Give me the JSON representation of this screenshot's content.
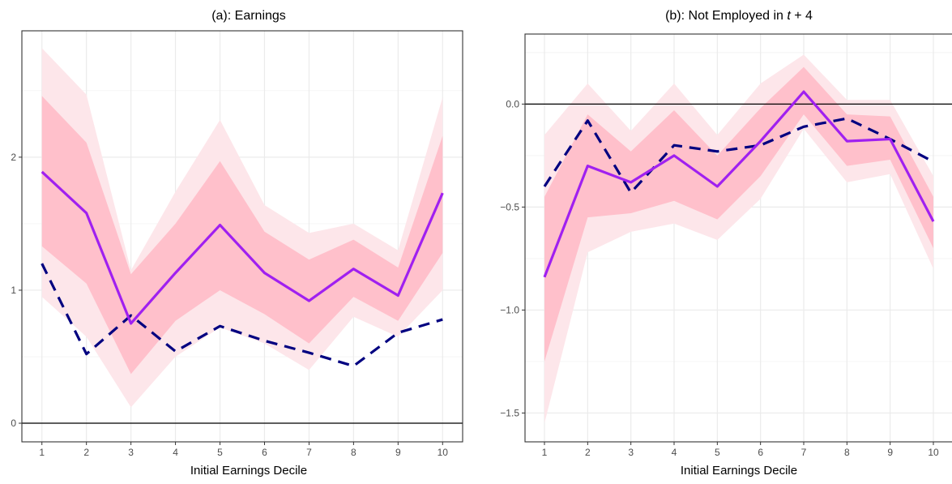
{
  "chart_data": [
    {
      "type": "line",
      "title": "(a): Earnings",
      "title_parts": {
        "main": "(a): Earnings",
        "italic": "",
        "suffix": ""
      },
      "xlabel": "Initial Earnings Decile",
      "ylabel": "",
      "x": [
        1,
        2,
        3,
        4,
        5,
        6,
        7,
        8,
        9,
        10
      ],
      "x_tick_labels": [
        "1",
        "2",
        "3",
        "4",
        "5",
        "6",
        "7",
        "8",
        "9",
        "10"
      ],
      "y_tick_values": [
        0,
        1,
        2
      ],
      "y_tick_labels": [
        "0",
        "1",
        "2"
      ],
      "ylim": [
        -0.14,
        2.95
      ],
      "xlim": [
        0.55,
        10.45
      ],
      "grid": true,
      "reference_line": 0,
      "series": [
        {
          "style": "solid",
          "color": "#a020f0",
          "values": [
            1.89,
            1.58,
            0.75,
            1.13,
            1.49,
            1.13,
            0.92,
            1.16,
            0.96,
            1.73
          ]
        },
        {
          "style": "dashed",
          "color": "#000080",
          "values": [
            1.2,
            0.52,
            0.81,
            0.54,
            0.73,
            0.62,
            0.53,
            0.43,
            0.68,
            0.78
          ]
        }
      ],
      "bands": [
        {
          "color": "#fde6ea",
          "lower": [
            0.95,
            0.65,
            0.12,
            0.5,
            0.72,
            0.6,
            0.4,
            0.8,
            0.65,
            1.0
          ],
          "upper": [
            2.82,
            2.47,
            1.15,
            1.74,
            2.28,
            1.64,
            1.43,
            1.5,
            1.3,
            2.45
          ]
        },
        {
          "color": "#ffc0cb",
          "lower": [
            1.33,
            1.05,
            0.37,
            0.77,
            1.0,
            0.82,
            0.6,
            0.95,
            0.77,
            1.28
          ],
          "upper": [
            2.46,
            2.11,
            1.12,
            1.5,
            1.97,
            1.44,
            1.23,
            1.38,
            1.17,
            2.16
          ]
        }
      ]
    },
    {
      "type": "line",
      "title": "(b): Not Employed in t + 4",
      "title_parts": {
        "main": "(b): Not Employed in ",
        "italic": "t",
        "suffix": " + 4"
      },
      "xlabel": "Initial Earnings Decile",
      "ylabel": "",
      "x": [
        1,
        2,
        3,
        4,
        5,
        6,
        7,
        8,
        9,
        10
      ],
      "x_tick_labels": [
        "1",
        "2",
        "3",
        "4",
        "5",
        "6",
        "7",
        "8",
        "9",
        "10"
      ],
      "y_tick_values": [
        0.0,
        -0.5,
        -1.0,
        -1.5
      ],
      "y_tick_labels": [
        "0.0",
        "−0.5",
        "−1.0",
        "−1.5"
      ],
      "ylim": [
        -1.64,
        0.34
      ],
      "xlim": [
        0.55,
        10.45
      ],
      "grid": true,
      "reference_line": 0,
      "series": [
        {
          "style": "solid",
          "color": "#a020f0",
          "values": [
            -0.84,
            -0.3,
            -0.38,
            -0.25,
            -0.4,
            -0.18,
            0.06,
            -0.18,
            -0.17,
            -0.57
          ]
        },
        {
          "style": "dashed",
          "color": "#000080",
          "values": [
            -0.4,
            -0.08,
            -0.43,
            -0.2,
            -0.23,
            -0.2,
            -0.11,
            -0.07,
            -0.17,
            -0.28
          ]
        }
      ],
      "bands": [
        {
          "color": "#fde6ea",
          "lower": [
            -1.55,
            -0.72,
            -0.62,
            -0.58,
            -0.66,
            -0.46,
            -0.12,
            -0.38,
            -0.34,
            -0.8
          ],
          "upper": [
            -0.15,
            0.1,
            -0.13,
            0.1,
            -0.15,
            0.1,
            0.24,
            0.02,
            0.02,
            -0.35
          ]
        },
        {
          "color": "#ffc0cb",
          "lower": [
            -1.25,
            -0.55,
            -0.53,
            -0.47,
            -0.56,
            -0.35,
            -0.05,
            -0.3,
            -0.27,
            -0.7
          ],
          "upper": [
            -0.45,
            -0.05,
            -0.23,
            -0.03,
            -0.25,
            -0.02,
            0.18,
            -0.05,
            -0.06,
            -0.45
          ]
        }
      ]
    }
  ]
}
